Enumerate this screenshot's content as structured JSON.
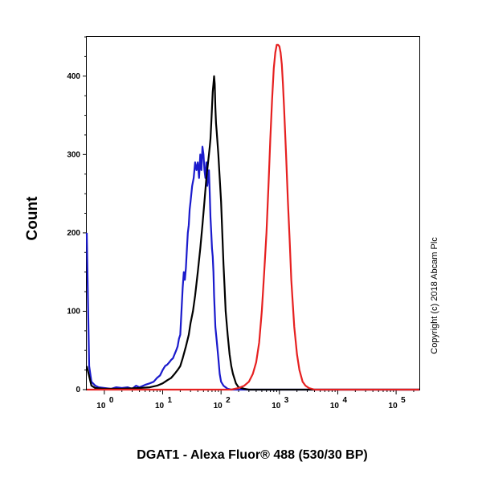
{
  "chart_data": {
    "type": "line",
    "xlabel": "DGAT1 - Alexa Fluor® 488 (530/30 BP)",
    "ylabel": "Count",
    "x_scale": "log",
    "xlim": [
      0.5,
      250000
    ],
    "ylim": [
      0,
      450
    ],
    "y_ticks": [
      0,
      100,
      200,
      300,
      400
    ],
    "y_tick_labels": [
      "0",
      "100",
      "200",
      "300",
      "400"
    ],
    "x_tick_labels": [
      {
        "base": "10",
        "exp": "0",
        "value": 1
      },
      {
        "base": "10",
        "exp": "1",
        "value": 10
      },
      {
        "base": "10",
        "exp": "2",
        "value": 100
      },
      {
        "base": "10",
        "exp": "3",
        "value": 1000
      },
      {
        "base": "10",
        "exp": "4",
        "value": 10000
      },
      {
        "base": "10",
        "exp": "5",
        "value": 100000
      }
    ],
    "grid": false,
    "copyright": "Copyright (c) 2018 Abcam Plc",
    "series": [
      {
        "color": "#1a1acc",
        "x": [
          0.5,
          0.55,
          0.6,
          0.7,
          0.8,
          1.0,
          1.3,
          1.6,
          2.0,
          2.5,
          3.0,
          3.5,
          4.0,
          5.0,
          6.0,
          7.0,
          8.0,
          9.0,
          10,
          11,
          12,
          13,
          14,
          15,
          16,
          17,
          18,
          19,
          20,
          21,
          22,
          23,
          24,
          25,
          26,
          27,
          28,
          29,
          30,
          32,
          34,
          36,
          38,
          40,
          42,
          44,
          46,
          48,
          50,
          52,
          54,
          56,
          58,
          60,
          62,
          64,
          66,
          68,
          70,
          72,
          74,
          76,
          78,
          80,
          85,
          90,
          95,
          100,
          110,
          120,
          130,
          150,
          200,
          300,
          1000,
          10000,
          250000
        ],
        "y": [
          200,
          30,
          10,
          5,
          3,
          2,
          1,
          3,
          2,
          3,
          1,
          5,
          3,
          6,
          8,
          10,
          15,
          18,
          25,
          30,
          32,
          35,
          38,
          40,
          45,
          50,
          55,
          65,
          70,
          100,
          130,
          150,
          140,
          155,
          180,
          200,
          210,
          230,
          240,
          260,
          270,
          290,
          280,
          290,
          270,
          300,
          280,
          310,
          300,
          280,
          270,
          290,
          260,
          270,
          280,
          250,
          220,
          200,
          180,
          170,
          150,
          120,
          100,
          80,
          60,
          40,
          20,
          10,
          5,
          3,
          1,
          0,
          0,
          0,
          0,
          0,
          0
        ]
      },
      {
        "color": "#000000",
        "x": [
          0.5,
          0.6,
          0.7,
          1.0,
          2.0,
          4.0,
          6.0,
          8.0,
          10,
          12,
          14,
          16,
          18,
          20,
          22,
          25,
          28,
          30,
          33,
          36,
          40,
          44,
          48,
          52,
          56,
          60,
          62,
          64,
          66,
          68,
          70,
          72,
          74,
          76,
          78,
          80,
          82,
          84,
          86,
          88,
          90,
          95,
          100,
          105,
          110,
          115,
          120,
          130,
          140,
          150,
          160,
          180,
          200,
          250,
          300,
          500,
          1000,
          10000,
          250000
        ],
        "y": [
          30,
          5,
          2,
          1,
          1,
          2,
          3,
          5,
          8,
          12,
          15,
          20,
          25,
          30,
          40,
          55,
          70,
          85,
          100,
          120,
          150,
          180,
          210,
          240,
          270,
          290,
          300,
          310,
          320,
          340,
          360,
          380,
          390,
          400,
          390,
          360,
          340,
          330,
          320,
          310,
          300,
          270,
          240,
          200,
          160,
          130,
          100,
          70,
          45,
          30,
          20,
          8,
          3,
          1,
          0,
          0,
          0,
          0,
          0
        ]
      },
      {
        "color": "#e62020",
        "x": [
          0.5,
          100,
          150,
          200,
          250,
          300,
          350,
          400,
          450,
          500,
          550,
          600,
          650,
          700,
          750,
          800,
          850,
          900,
          950,
          1000,
          1050,
          1100,
          1150,
          1200,
          1300,
          1400,
          1500,
          1600,
          1800,
          2000,
          2200,
          2500,
          2800,
          3200,
          3600,
          4000,
          5000,
          10000,
          250000
        ],
        "y": [
          0,
          0,
          0,
          2,
          5,
          10,
          20,
          35,
          60,
          100,
          150,
          200,
          260,
          320,
          370,
          410,
          430,
          440,
          440,
          438,
          430,
          415,
          390,
          360,
          300,
          240,
          190,
          140,
          80,
          45,
          25,
          10,
          5,
          2,
          1,
          0,
          0,
          0,
          0
        ]
      }
    ]
  }
}
